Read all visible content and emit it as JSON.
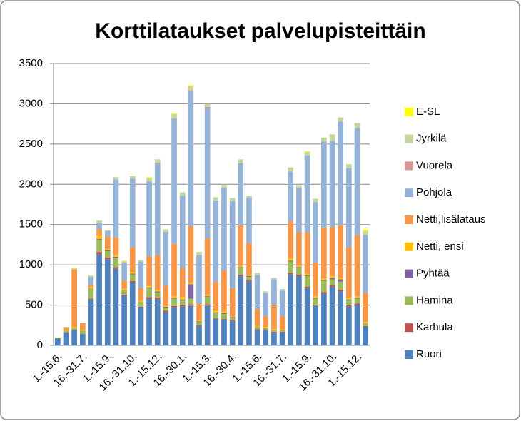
{
  "chart_data": {
    "type": "stacked-bar",
    "title": "Korttilataukset palvelupisteittäin",
    "categories": [
      "1.-15.6.",
      null,
      null,
      "16.-31.7.",
      null,
      null,
      "1.-15.9.",
      null,
      null,
      "16.-31.10.",
      null,
      null,
      "1.-15.12.",
      null,
      null,
      "16.-30.1.",
      null,
      null,
      "1.-15.3.",
      null,
      null,
      "16.-30.4.",
      null,
      null,
      "1.-15.6.",
      null,
      null,
      "16.-31.7.",
      null,
      null,
      "1.-15.9.",
      null,
      null,
      "16.-31.10.",
      null,
      null,
      "1.-15.12.",
      null
    ],
    "ylim": [
      0,
      3500
    ],
    "yticks": [
      0,
      500,
      1000,
      1500,
      2000,
      2500,
      3000,
      3500
    ],
    "grid": true,
    "series": [
      {
        "name": "Ruori",
        "color": "#4f81bd",
        "values": [
          90,
          160,
          190,
          140,
          570,
          1130,
          1070,
          950,
          620,
          780,
          470,
          580,
          570,
          410,
          470,
          480,
          490,
          240,
          490,
          330,
          320,
          300,
          860,
          790,
          190,
          190,
          160,
          160,
          880,
          860,
          710,
          490,
          640,
          730,
          670,
          480,
          500,
          230
        ]
      },
      {
        "name": "Karhula",
        "color": "#c0504d",
        "values": [
          0,
          5,
          5,
          5,
          10,
          30,
          20,
          20,
          10,
          20,
          10,
          20,
          20,
          20,
          20,
          20,
          20,
          10,
          20,
          10,
          10,
          10,
          20,
          20,
          10,
          10,
          10,
          10,
          20,
          20,
          20,
          10,
          20,
          20,
          20,
          20,
          20,
          10
        ]
      },
      {
        "name": "Hamina",
        "color": "#9bbb59",
        "values": [
          0,
          20,
          20,
          40,
          130,
          150,
          80,
          120,
          50,
          80,
          60,
          110,
          70,
          40,
          90,
          60,
          70,
          40,
          90,
          60,
          60,
          30,
          80,
          40,
          30,
          20,
          20,
          20,
          140,
          80,
          130,
          80,
          140,
          70,
          100,
          60,
          60,
          40
        ]
      },
      {
        "name": "Pyhtää",
        "color": "#8064a2",
        "values": [
          0,
          0,
          0,
          0,
          0,
          10,
          10,
          10,
          5,
          10,
          0,
          10,
          10,
          10,
          10,
          10,
          180,
          10,
          10,
          10,
          10,
          10,
          10,
          10,
          0,
          0,
          0,
          0,
          10,
          10,
          10,
          10,
          10,
          20,
          30,
          10,
          10,
          0
        ]
      },
      {
        "name": "Netti, ensi",
        "color": "#ffc000",
        "values": [
          0,
          10,
          10,
          10,
          10,
          40,
          20,
          20,
          20,
          20,
          10,
          20,
          20,
          10,
          20,
          30,
          20,
          10,
          20,
          20,
          20,
          10,
          20,
          10,
          10,
          10,
          10,
          10,
          30,
          20,
          20,
          20,
          20,
          20,
          20,
          20,
          20,
          10
        ]
      },
      {
        "name": "Netti,lisälataus",
        "color": "#f79646",
        "values": [
          0,
          30,
          720,
          80,
          30,
          80,
          150,
          220,
          100,
          310,
          160,
          370,
          430,
          250,
          650,
          360,
          700,
          210,
          700,
          360,
          510,
          350,
          500,
          400,
          210,
          130,
          300,
          160,
          460,
          420,
          510,
          420,
          630,
          610,
          650,
          630,
          760,
          360
        ]
      },
      {
        "name": "Pohjola",
        "color": "#95b3d7",
        "values": [
          0,
          0,
          0,
          0,
          100,
          80,
          70,
          720,
          220,
          850,
          330,
          930,
          1140,
          670,
          1550,
          900,
          1670,
          600,
          1620,
          1010,
          1030,
          1080,
          770,
          570,
          420,
          290,
          320,
          320,
          620,
          550,
          960,
          750,
          1070,
          1070,
          1290,
          980,
          1330,
          720
        ]
      },
      {
        "name": "Vuorela",
        "color": "#d99694",
        "values": [
          0,
          0,
          0,
          0,
          0,
          0,
          0,
          0,
          0,
          0,
          0,
          0,
          10,
          0,
          10,
          0,
          20,
          0,
          10,
          0,
          0,
          0,
          0,
          0,
          0,
          0,
          0,
          0,
          0,
          0,
          0,
          0,
          0,
          0,
          0,
          0,
          0,
          0
        ]
      },
      {
        "name": "Jyrkilä",
        "color": "#c3d69b",
        "values": [
          5,
          5,
          10,
          5,
          20,
          30,
          10,
          30,
          20,
          30,
          20,
          40,
          40,
          30,
          50,
          40,
          50,
          40,
          40,
          40,
          40,
          40,
          50,
          20,
          30,
          20,
          20,
          20,
          50,
          30,
          40,
          40,
          50,
          80,
          50,
          50,
          60,
          50
        ]
      },
      {
        "name": "E-SL",
        "color": "#ffff00",
        "values": [
          5,
          0,
          5,
          0,
          0,
          0,
          0,
          0,
          5,
          0,
          0,
          10,
          0,
          0,
          10,
          0,
          10,
          0,
          0,
          0,
          0,
          0,
          0,
          0,
          0,
          0,
          0,
          0,
          0,
          0,
          10,
          0,
          0,
          0,
          0,
          0,
          0,
          20
        ]
      }
    ]
  }
}
